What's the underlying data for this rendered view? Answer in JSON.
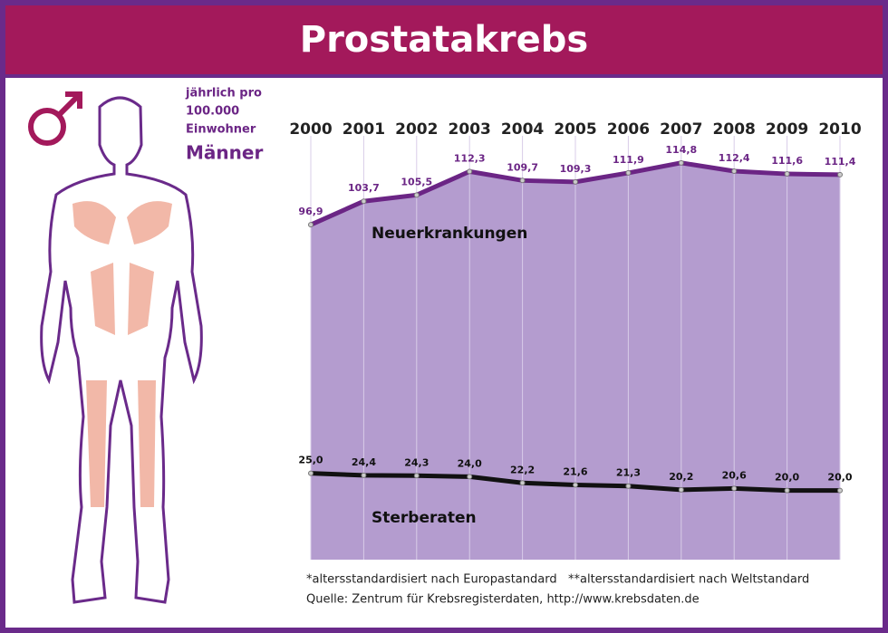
{
  "header": {
    "title": "Prostatakrebs"
  },
  "note": {
    "lines": [
      "jährlich pro",
      "100.000",
      "Einwohner"
    ],
    "group": "Männer"
  },
  "chart_data": {
    "type": "line",
    "categories": [
      "2000",
      "2001",
      "2002",
      "2003",
      "2004",
      "2005",
      "2006",
      "2007",
      "2008",
      "2009",
      "2010"
    ],
    "series": [
      {
        "name": "Neuerkrankungen",
        "color": "#6b2585",
        "values": [
          96.9,
          103.7,
          105.5,
          112.3,
          109.7,
          109.3,
          111.9,
          114.8,
          112.4,
          111.6,
          111.4
        ],
        "value_labels": [
          "96,9",
          "103,7",
          "105,5",
          "112,3",
          "109,7",
          "109,3",
          "111,9",
          "114,8",
          "112,4",
          "111,6",
          "111,4"
        ]
      },
      {
        "name": "Sterberaten",
        "color": "#111111",
        "values": [
          25.0,
          24.4,
          24.3,
          24.0,
          22.2,
          21.6,
          21.3,
          20.2,
          20.6,
          20.0,
          20.0
        ],
        "value_labels": [
          "25,0",
          "24,4",
          "24,3",
          "24,0",
          "22,2",
          "21,6",
          "21,3",
          "20,2",
          "20,6",
          "20,0",
          "20,0"
        ]
      }
    ],
    "ylim": [
      0,
      120
    ],
    "grid": true,
    "fill_color": "#b49ccf"
  },
  "footnotes": [
    "*altersstandardisiert nach Europastandard   **altersstandardisiert nach Weltstandard",
    "Quelle: Zentrum für Krebsregisterdaten, http://www.krebsdaten.de"
  ]
}
